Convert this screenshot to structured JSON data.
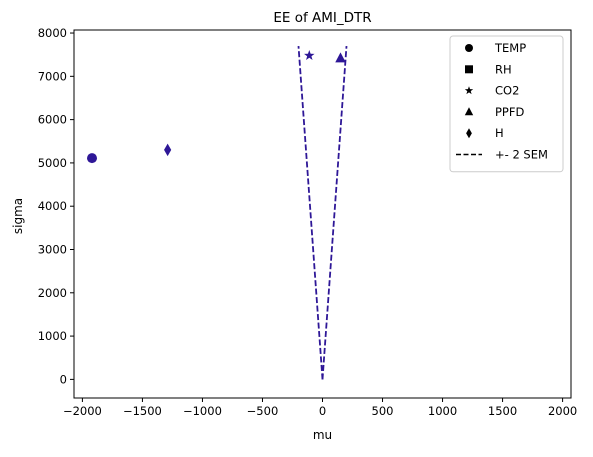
{
  "chart_data": {
    "type": "scatter",
    "title": "EE of AMI_DTR",
    "xlabel": "mu",
    "ylabel": "sigma",
    "xlim": [
      -2070,
      2070
    ],
    "ylim": [
      -430,
      8070
    ],
    "x_ticks": [
      -2000,
      -1500,
      -1000,
      -500,
      0,
      500,
      1000,
      1500,
      2000
    ],
    "x_tick_labels": [
      "−2000",
      "−1500",
      "−1000",
      "−500",
      "0",
      "500",
      "1000",
      "1500",
      "2000"
    ],
    "y_ticks": [
      0,
      1000,
      2000,
      3000,
      4000,
      5000,
      6000,
      7000,
      8000
    ],
    "y_tick_labels": [
      "0",
      "1000",
      "2000",
      "3000",
      "4000",
      "5000",
      "6000",
      "7000",
      "8000"
    ],
    "grid": false,
    "legend_position": "top-right",
    "marker_color": "#2e1797",
    "line_color": "#2e1797",
    "points": [
      {
        "name": "TEMP",
        "marker": "circle",
        "x": -1920,
        "y": 5110
      },
      {
        "name": "RH",
        "marker": "square",
        "x": null,
        "y": null
      },
      {
        "name": "CO2",
        "marker": "star",
        "x": -110,
        "y": 7480
      },
      {
        "name": "PPFD",
        "marker": "triangle",
        "x": 150,
        "y": 7420
      },
      {
        "name": "H",
        "marker": "diamond",
        "x": -1290,
        "y": 5300
      }
    ],
    "sem_lines": {
      "name": "+- 2 SEM",
      "left": {
        "x": [
          0,
          -200
        ],
        "y": [
          0,
          7700
        ]
      },
      "right": {
        "x": [
          0,
          200
        ],
        "y": [
          0,
          7700
        ]
      }
    },
    "legend": [
      {
        "label": "TEMP",
        "marker": "circle"
      },
      {
        "label": "RH",
        "marker": "square"
      },
      {
        "label": "CO2",
        "marker": "star"
      },
      {
        "label": "PPFD",
        "marker": "triangle"
      },
      {
        "label": "H",
        "marker": "diamond"
      },
      {
        "label": "+- 2 SEM",
        "marker": "dashed-line"
      }
    ]
  }
}
